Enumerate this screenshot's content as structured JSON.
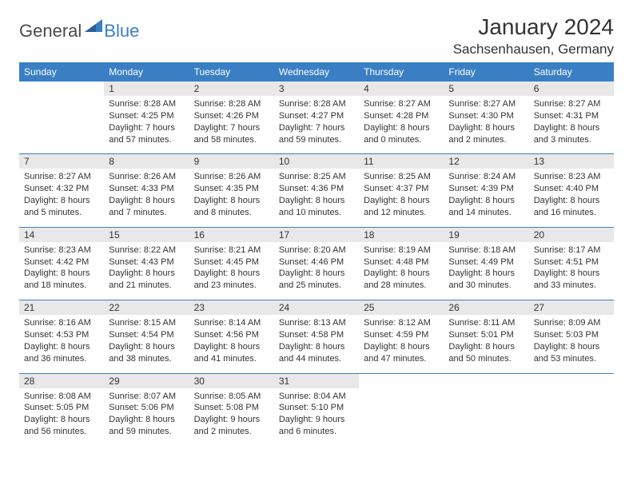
{
  "logo": {
    "text_main": "General",
    "text_accent": "Blue"
  },
  "title": {
    "month": "January 2024",
    "location": "Sachsenhausen, Germany"
  },
  "colors": {
    "header_bg": "#3a7fc4",
    "header_text": "#ffffff",
    "daynum_bg": "#e8e8e8",
    "border": "#3a7fc4",
    "text": "#333333",
    "background": "#ffffff"
  },
  "day_headers": [
    "Sunday",
    "Monday",
    "Tuesday",
    "Wednesday",
    "Thursday",
    "Friday",
    "Saturday"
  ],
  "weeks": [
    [
      {
        "day": "",
        "sunrise": "",
        "sunset": "",
        "daylight": ""
      },
      {
        "day": "1",
        "sunrise": "Sunrise: 8:28 AM",
        "sunset": "Sunset: 4:25 PM",
        "daylight": "Daylight: 7 hours and 57 minutes."
      },
      {
        "day": "2",
        "sunrise": "Sunrise: 8:28 AM",
        "sunset": "Sunset: 4:26 PM",
        "daylight": "Daylight: 7 hours and 58 minutes."
      },
      {
        "day": "3",
        "sunrise": "Sunrise: 8:28 AM",
        "sunset": "Sunset: 4:27 PM",
        "daylight": "Daylight: 7 hours and 59 minutes."
      },
      {
        "day": "4",
        "sunrise": "Sunrise: 8:27 AM",
        "sunset": "Sunset: 4:28 PM",
        "daylight": "Daylight: 8 hours and 0 minutes."
      },
      {
        "day": "5",
        "sunrise": "Sunrise: 8:27 AM",
        "sunset": "Sunset: 4:30 PM",
        "daylight": "Daylight: 8 hours and 2 minutes."
      },
      {
        "day": "6",
        "sunrise": "Sunrise: 8:27 AM",
        "sunset": "Sunset: 4:31 PM",
        "daylight": "Daylight: 8 hours and 3 minutes."
      }
    ],
    [
      {
        "day": "7",
        "sunrise": "Sunrise: 8:27 AM",
        "sunset": "Sunset: 4:32 PM",
        "daylight": "Daylight: 8 hours and 5 minutes."
      },
      {
        "day": "8",
        "sunrise": "Sunrise: 8:26 AM",
        "sunset": "Sunset: 4:33 PM",
        "daylight": "Daylight: 8 hours and 7 minutes."
      },
      {
        "day": "9",
        "sunrise": "Sunrise: 8:26 AM",
        "sunset": "Sunset: 4:35 PM",
        "daylight": "Daylight: 8 hours and 8 minutes."
      },
      {
        "day": "10",
        "sunrise": "Sunrise: 8:25 AM",
        "sunset": "Sunset: 4:36 PM",
        "daylight": "Daylight: 8 hours and 10 minutes."
      },
      {
        "day": "11",
        "sunrise": "Sunrise: 8:25 AM",
        "sunset": "Sunset: 4:37 PM",
        "daylight": "Daylight: 8 hours and 12 minutes."
      },
      {
        "day": "12",
        "sunrise": "Sunrise: 8:24 AM",
        "sunset": "Sunset: 4:39 PM",
        "daylight": "Daylight: 8 hours and 14 minutes."
      },
      {
        "day": "13",
        "sunrise": "Sunrise: 8:23 AM",
        "sunset": "Sunset: 4:40 PM",
        "daylight": "Daylight: 8 hours and 16 minutes."
      }
    ],
    [
      {
        "day": "14",
        "sunrise": "Sunrise: 8:23 AM",
        "sunset": "Sunset: 4:42 PM",
        "daylight": "Daylight: 8 hours and 18 minutes."
      },
      {
        "day": "15",
        "sunrise": "Sunrise: 8:22 AM",
        "sunset": "Sunset: 4:43 PM",
        "daylight": "Daylight: 8 hours and 21 minutes."
      },
      {
        "day": "16",
        "sunrise": "Sunrise: 8:21 AM",
        "sunset": "Sunset: 4:45 PM",
        "daylight": "Daylight: 8 hours and 23 minutes."
      },
      {
        "day": "17",
        "sunrise": "Sunrise: 8:20 AM",
        "sunset": "Sunset: 4:46 PM",
        "daylight": "Daylight: 8 hours and 25 minutes."
      },
      {
        "day": "18",
        "sunrise": "Sunrise: 8:19 AM",
        "sunset": "Sunset: 4:48 PM",
        "daylight": "Daylight: 8 hours and 28 minutes."
      },
      {
        "day": "19",
        "sunrise": "Sunrise: 8:18 AM",
        "sunset": "Sunset: 4:49 PM",
        "daylight": "Daylight: 8 hours and 30 minutes."
      },
      {
        "day": "20",
        "sunrise": "Sunrise: 8:17 AM",
        "sunset": "Sunset: 4:51 PM",
        "daylight": "Daylight: 8 hours and 33 minutes."
      }
    ],
    [
      {
        "day": "21",
        "sunrise": "Sunrise: 8:16 AM",
        "sunset": "Sunset: 4:53 PM",
        "daylight": "Daylight: 8 hours and 36 minutes."
      },
      {
        "day": "22",
        "sunrise": "Sunrise: 8:15 AM",
        "sunset": "Sunset: 4:54 PM",
        "daylight": "Daylight: 8 hours and 38 minutes."
      },
      {
        "day": "23",
        "sunrise": "Sunrise: 8:14 AM",
        "sunset": "Sunset: 4:56 PM",
        "daylight": "Daylight: 8 hours and 41 minutes."
      },
      {
        "day": "24",
        "sunrise": "Sunrise: 8:13 AM",
        "sunset": "Sunset: 4:58 PM",
        "daylight": "Daylight: 8 hours and 44 minutes."
      },
      {
        "day": "25",
        "sunrise": "Sunrise: 8:12 AM",
        "sunset": "Sunset: 4:59 PM",
        "daylight": "Daylight: 8 hours and 47 minutes."
      },
      {
        "day": "26",
        "sunrise": "Sunrise: 8:11 AM",
        "sunset": "Sunset: 5:01 PM",
        "daylight": "Daylight: 8 hours and 50 minutes."
      },
      {
        "day": "27",
        "sunrise": "Sunrise: 8:09 AM",
        "sunset": "Sunset: 5:03 PM",
        "daylight": "Daylight: 8 hours and 53 minutes."
      }
    ],
    [
      {
        "day": "28",
        "sunrise": "Sunrise: 8:08 AM",
        "sunset": "Sunset: 5:05 PM",
        "daylight": "Daylight: 8 hours and 56 minutes."
      },
      {
        "day": "29",
        "sunrise": "Sunrise: 8:07 AM",
        "sunset": "Sunset: 5:06 PM",
        "daylight": "Daylight: 8 hours and 59 minutes."
      },
      {
        "day": "30",
        "sunrise": "Sunrise: 8:05 AM",
        "sunset": "Sunset: 5:08 PM",
        "daylight": "Daylight: 9 hours and 2 minutes."
      },
      {
        "day": "31",
        "sunrise": "Sunrise: 8:04 AM",
        "sunset": "Sunset: 5:10 PM",
        "daylight": "Daylight: 9 hours and 6 minutes."
      },
      {
        "day": "",
        "sunrise": "",
        "sunset": "",
        "daylight": ""
      },
      {
        "day": "",
        "sunrise": "",
        "sunset": "",
        "daylight": ""
      },
      {
        "day": "",
        "sunrise": "",
        "sunset": "",
        "daylight": ""
      }
    ]
  ]
}
